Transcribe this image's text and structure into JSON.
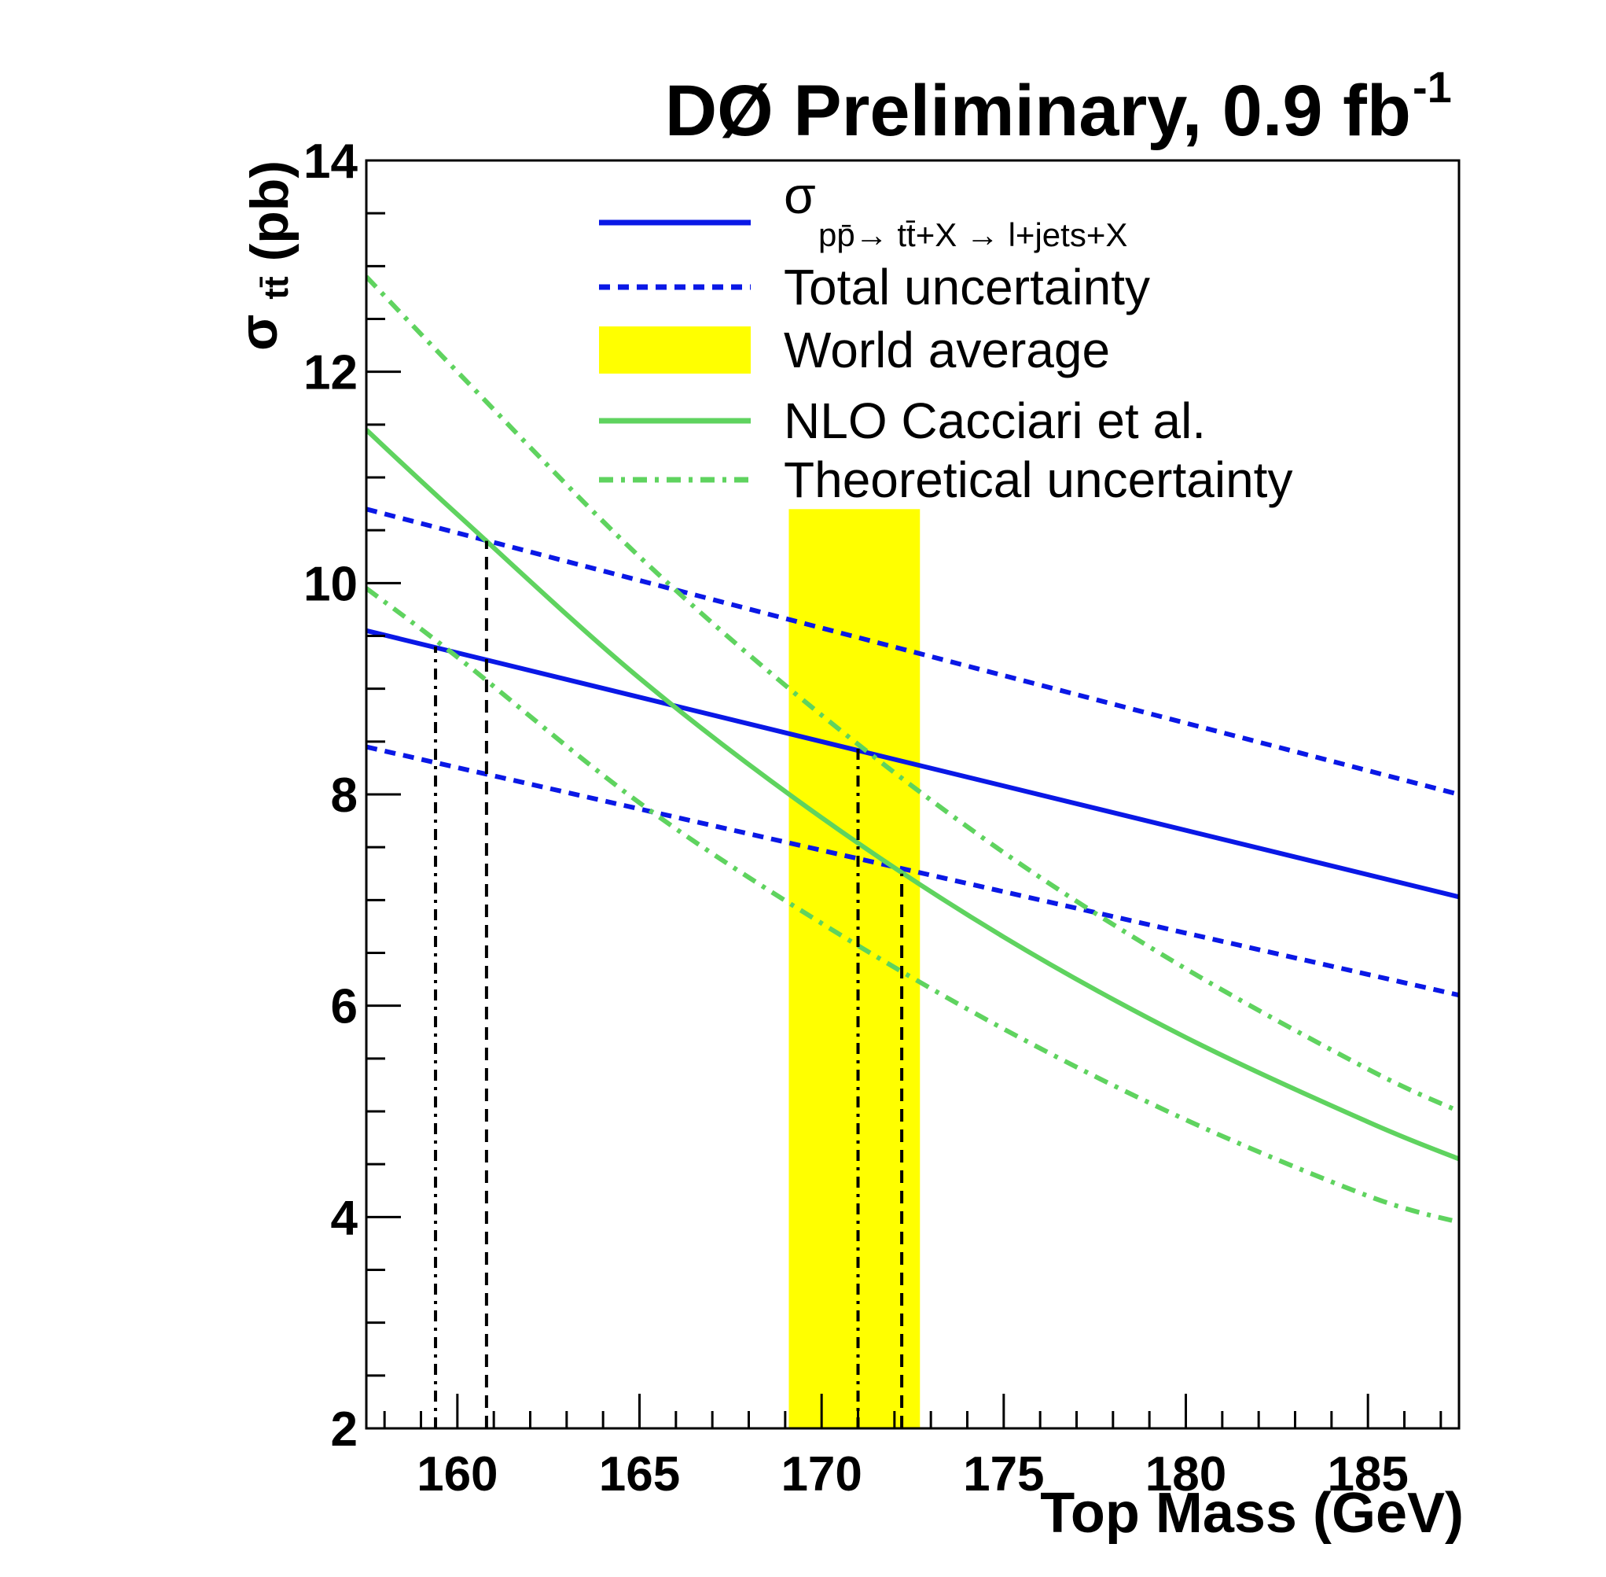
{
  "chart_data": {
    "type": "line",
    "title": "DØ Preliminary, 0.9 fb",
    "title_superscript": "-1",
    "xlabel": "Top Mass (GeV)",
    "ylabel_main": "σ",
    "ylabel_sub": "tt̄",
    "ylabel_unit": "(pb)",
    "xlim": [
      157.5,
      187.5
    ],
    "ylim": [
      2,
      14
    ],
    "x_ticks": [
      160,
      165,
      170,
      175,
      180,
      185
    ],
    "x_tick_labels": [
      "160",
      "165",
      "170",
      "175",
      "180",
      "185"
    ],
    "y_ticks": [
      2,
      4,
      6,
      8,
      10,
      12,
      14
    ],
    "y_tick_labels": [
      "2",
      "4",
      "6",
      "8",
      "10",
      "12",
      "14"
    ],
    "legend_position": "top-right",
    "legend": [
      {
        "label": "σ",
        "sub": "pp̄→ tt̄+X → l+jets+X",
        "style": "solid",
        "color": "#0a18e6"
      },
      {
        "label": "Total uncertainty",
        "style": "dashed",
        "color": "#0a18e6"
      },
      {
        "label": "World average",
        "style": "band",
        "color": "#ffff00"
      },
      {
        "label": "NLO Cacciari et al.",
        "style": "solid",
        "color": "#5fd35f"
      },
      {
        "label": "Theoretical uncertainty",
        "style": "dashdot",
        "color": "#5fd35f"
      }
    ],
    "series": [
      {
        "name": "measured_central",
        "style": "solid",
        "color": "#0a18e6",
        "x": [
          157.5,
          187.5
        ],
        "y": [
          9.55,
          7.03
        ]
      },
      {
        "name": "measured_upper",
        "style": "dashed",
        "color": "#0a18e6",
        "x": [
          157.5,
          187.5
        ],
        "y": [
          10.7,
          8.0
        ]
      },
      {
        "name": "measured_lower",
        "style": "dashed",
        "color": "#0a18e6",
        "x": [
          157.5,
          187.5
        ],
        "y": [
          8.45,
          6.1
        ]
      },
      {
        "name": "nlo_central",
        "style": "solid",
        "color": "#5fd35f",
        "x": [
          157.5,
          160,
          165,
          170,
          175,
          180,
          185,
          187.5
        ],
        "y": [
          11.45,
          10.65,
          9.1,
          7.78,
          6.65,
          5.7,
          4.9,
          4.55
        ]
      },
      {
        "name": "nlo_upper",
        "style": "dashdot",
        "color": "#5fd35f",
        "x": [
          157.5,
          160,
          165,
          170,
          175,
          180,
          185,
          187.5
        ],
        "y": [
          12.9,
          12.0,
          10.25,
          8.75,
          7.45,
          6.35,
          5.4,
          5.0
        ]
      },
      {
        "name": "nlo_lower",
        "style": "dashdot",
        "color": "#5fd35f",
        "x": [
          157.5,
          160,
          165,
          170,
          175,
          180,
          185,
          187.5
        ],
        "y": [
          9.95,
          9.3,
          7.92,
          6.78,
          5.78,
          4.92,
          4.2,
          3.95
        ]
      }
    ],
    "band": {
      "x": [
        169.1,
        172.7
      ],
      "y": [
        2,
        10.7
      ],
      "color": "#ffff00"
    },
    "vlines": [
      {
        "x": 159.4,
        "y_top": 9.4,
        "style": "dashdot",
        "color": "#000000"
      },
      {
        "x": 160.8,
        "y_top": 10.4,
        "style": "dashed",
        "color": "#000000"
      },
      {
        "x": 171.0,
        "y_top": 8.45,
        "style": "dashdot",
        "color": "#000000"
      },
      {
        "x": 172.2,
        "y_top": 7.25,
        "style": "dashed",
        "color": "#000000"
      }
    ]
  }
}
